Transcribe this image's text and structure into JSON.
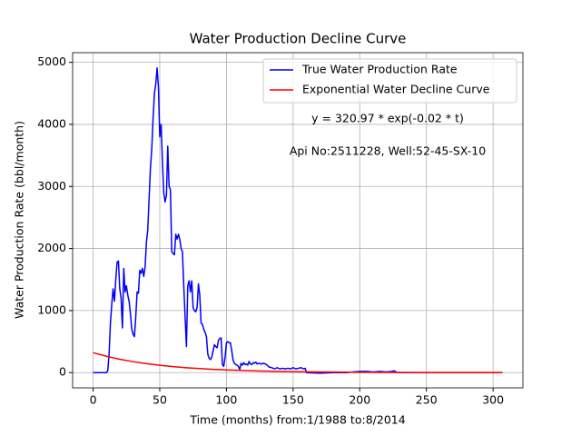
{
  "chart_data": {
    "type": "line",
    "title": "Water Production Decline Curve",
    "xlabel": "Time (months) from:1/1988 to:8/2014",
    "ylabel": "Water Production Rate (bbl/month)",
    "annotations": [
      "y = 320.97 * exp(-0.02 * t)",
      "Api No:2511228, Well:52-45-SX-10"
    ],
    "xlim": [
      -15.35,
      322.35
    ],
    "ylim": [
      -245.5,
      5155.5
    ],
    "xticks": [
      0,
      50,
      100,
      150,
      200,
      250,
      300
    ],
    "yticks": [
      0,
      1000,
      2000,
      3000,
      4000,
      5000
    ],
    "grid": true,
    "legend": "upper right",
    "series": [
      {
        "name": "True Water Production Rate",
        "color": "#0000ff",
        "x": [
          0,
          10,
          11,
          12,
          13,
          14,
          15,
          16,
          17,
          18,
          19,
          20,
          21,
          22,
          23,
          24,
          25,
          26,
          27,
          28,
          29,
          30,
          31,
          32,
          33,
          34,
          35,
          36,
          37,
          38,
          39,
          40,
          41,
          42,
          43,
          44,
          45,
          46,
          47,
          48,
          49,
          50,
          51,
          52,
          53,
          54,
          55,
          56,
          57,
          58,
          59,
          60,
          61,
          62,
          63,
          64,
          65,
          66,
          67,
          68,
          69,
          70,
          71,
          72,
          73,
          74,
          75,
          76,
          77,
          78,
          79,
          80,
          81,
          82,
          83,
          84,
          85,
          86,
          87,
          88,
          89,
          90,
          91,
          92,
          93,
          94,
          95,
          96,
          97,
          98,
          99,
          100,
          101,
          102,
          103,
          104,
          105,
          106,
          107,
          108,
          109,
          110,
          111,
          112,
          113,
          114,
          115,
          116,
          117,
          118,
          119,
          120,
          121,
          122,
          123,
          124,
          126,
          128,
          130,
          132,
          134,
          136,
          138,
          140,
          142,
          144,
          146,
          148,
          150,
          152,
          154,
          156,
          158,
          159,
          160,
          170,
          180,
          190,
          195,
          200,
          205,
          210,
          215,
          220,
          224,
          226,
          228,
          240,
          260,
          280,
          307
        ],
        "values": [
          0,
          0,
          30,
          300,
          800,
          1100,
          1350,
          1150,
          1500,
          1780,
          1800,
          1350,
          1200,
          720,
          1680,
          1300,
          1400,
          1250,
          1150,
          950,
          700,
          620,
          580,
          900,
          1300,
          1280,
          1650,
          1600,
          1680,
          1550,
          1700,
          2100,
          2300,
          2800,
          3300,
          3600,
          4100,
          4500,
          4650,
          4910,
          4600,
          3800,
          4000,
          3400,
          2900,
          2750,
          2850,
          3650,
          3000,
          2950,
          1950,
          1920,
          1900,
          2230,
          2150,
          2230,
          2150,
          2000,
          1950,
          1400,
          900,
          420,
          1400,
          1480,
          1300,
          1480,
          1050,
          1000,
          980,
          1050,
          1430,
          1250,
          800,
          780,
          700,
          650,
          580,
          300,
          230,
          210,
          250,
          350,
          450,
          420,
          400,
          520,
          550,
          560,
          130,
          100,
          250,
          480,
          500,
          480,
          480,
          350,
          200,
          150,
          130,
          120,
          100,
          50,
          150,
          120,
          160,
          130,
          140,
          120,
          180,
          140,
          130,
          160,
          150,
          170,
          140,
          150,
          140,
          150,
          130,
          90,
          80,
          60,
          80,
          60,
          70,
          60,
          70,
          60,
          80,
          60,
          70,
          80,
          60,
          70,
          0,
          -10,
          0,
          0,
          10,
          20,
          20,
          10,
          20,
          10,
          20,
          30,
          0,
          0,
          0,
          0,
          0
        ]
      },
      {
        "name": "Exponential Water Decline Curve",
        "color": "#ff0000",
        "x": [
          0,
          10,
          20,
          30,
          40,
          50,
          60,
          70,
          80,
          90,
          100,
          110,
          120,
          130,
          140,
          150,
          160,
          180,
          200,
          250,
          307
        ],
        "values": [
          320.97,
          262.79,
          215.15,
          176.15,
          144.22,
          118.08,
          96.67,
          79.15,
          64.8,
          53.06,
          43.44,
          35.56,
          29.12,
          23.84,
          19.52,
          15.98,
          13.08,
          8.77,
          5.88,
          2.16,
          0.69
        ]
      }
    ]
  }
}
